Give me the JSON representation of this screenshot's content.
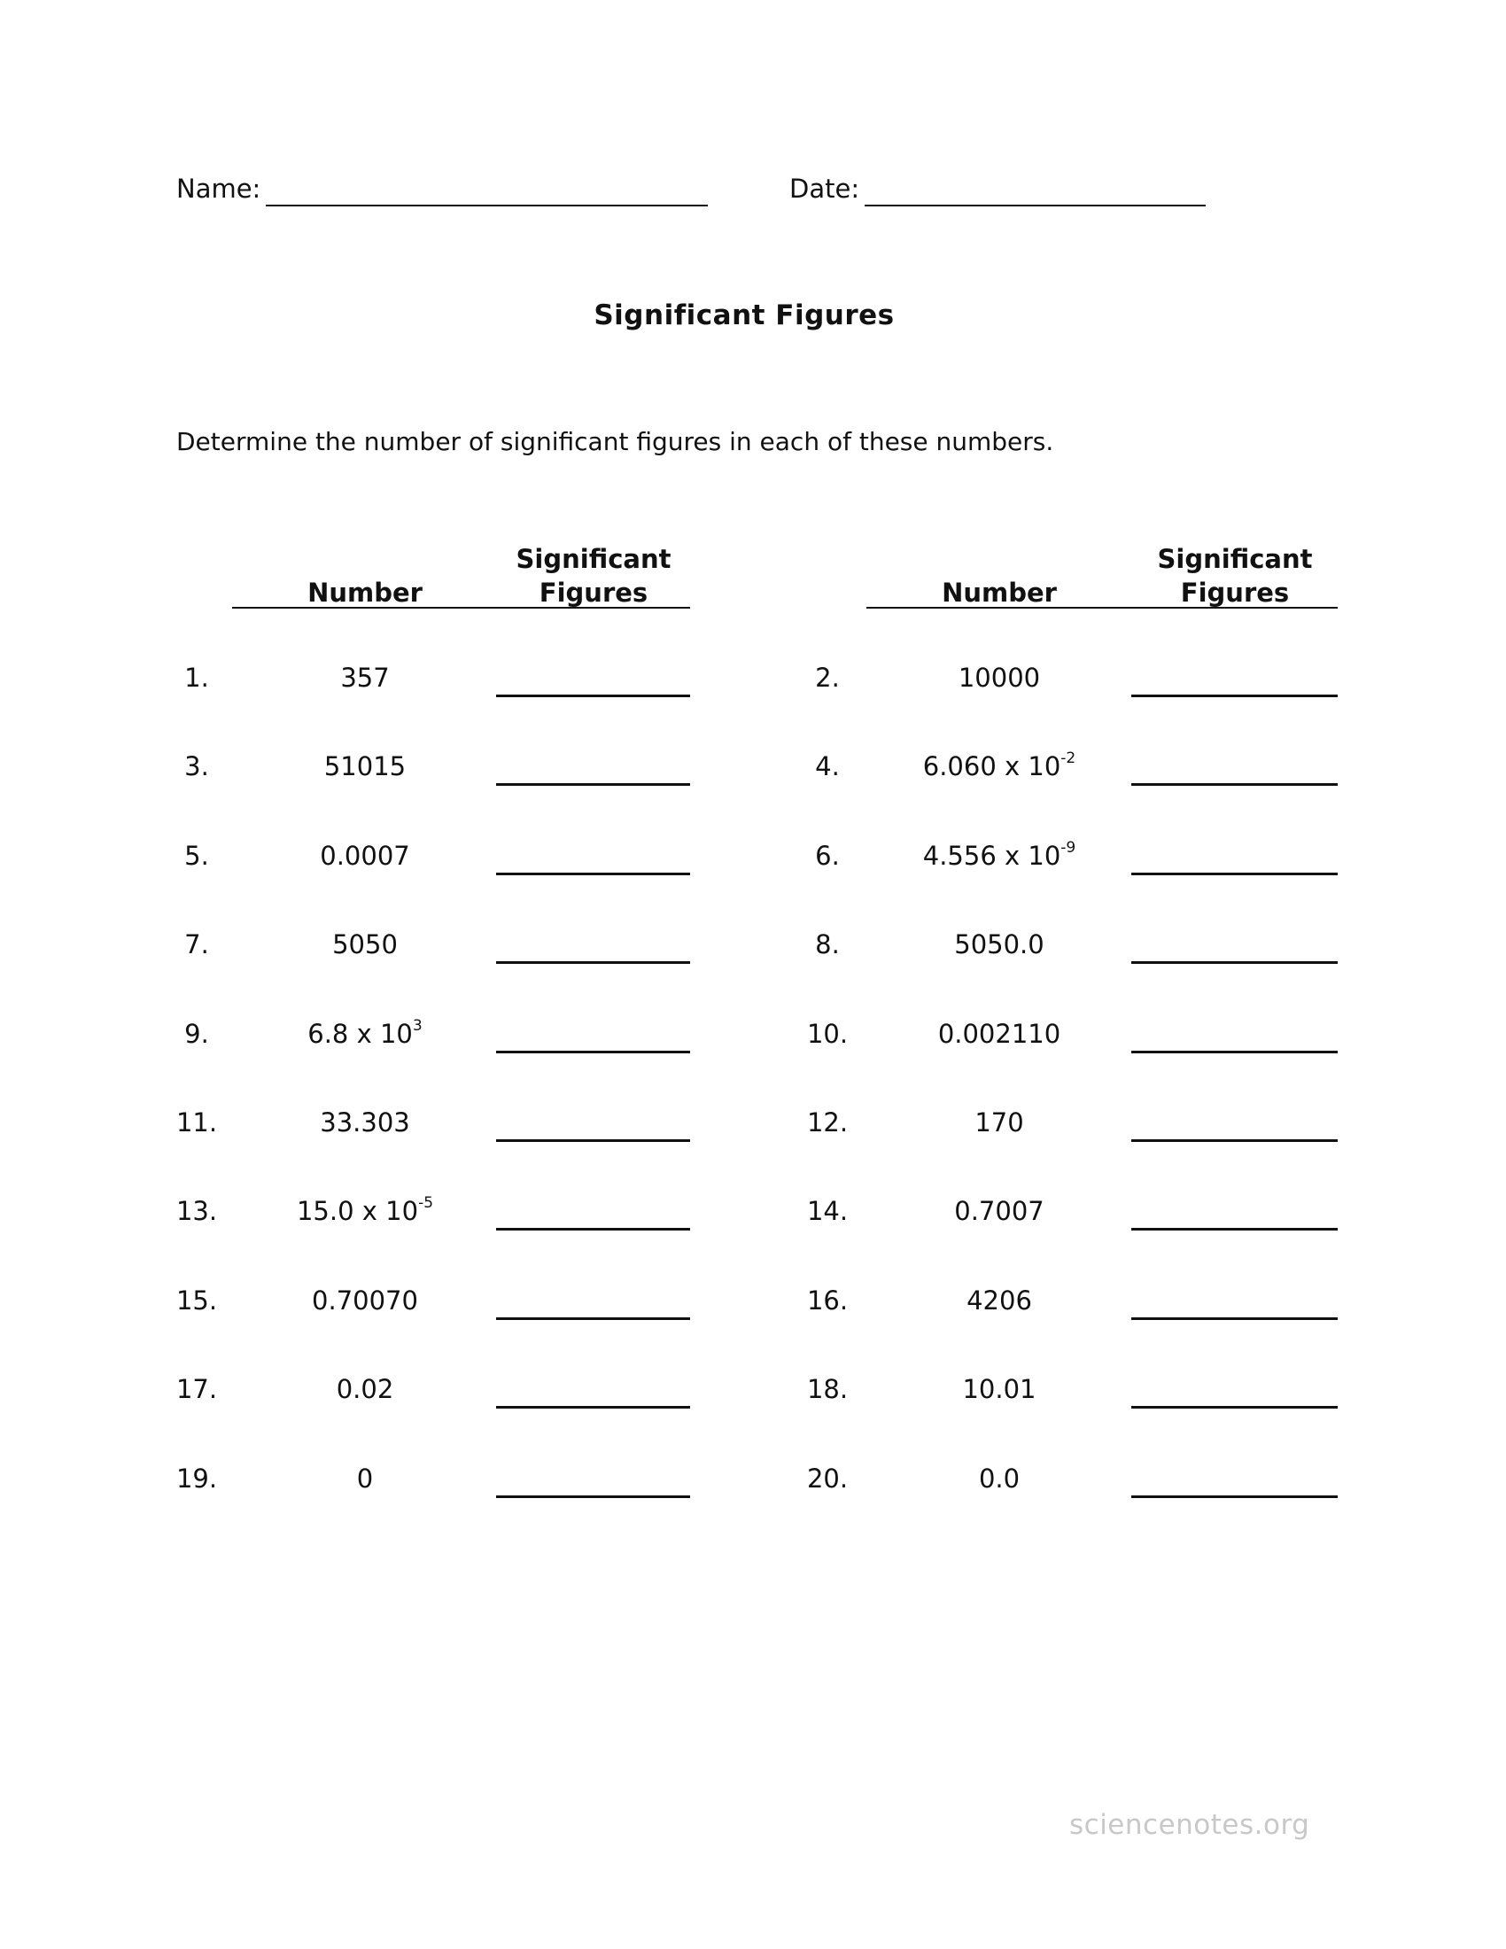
{
  "header": {
    "name_label": "Name:",
    "date_label": "Date:"
  },
  "title": "Significant  Figures",
  "instructions": "Determine the number of significant figures in each of these numbers.",
  "columns": {
    "number": "Number",
    "sigfigs_line1": "Significant",
    "sigfigs_line2": "Figures"
  },
  "problems": [
    {
      "label": "1.",
      "base": "357",
      "exp": ""
    },
    {
      "label": "2.",
      "base": "10000",
      "exp": ""
    },
    {
      "label": "3.",
      "base": "51015",
      "exp": ""
    },
    {
      "label": "4.",
      "base": "6.060 x 10",
      "exp": "-2"
    },
    {
      "label": "5.",
      "base": "0.0007",
      "exp": ""
    },
    {
      "label": "6.",
      "base": "4.556 x 10",
      "exp": "-9"
    },
    {
      "label": "7.",
      "base": "5050",
      "exp": ""
    },
    {
      "label": "8.",
      "base": "5050.0",
      "exp": ""
    },
    {
      "label": "9.",
      "base": "6.8 x 10",
      "exp": "3"
    },
    {
      "label": "10.",
      "base": "0.002110",
      "exp": ""
    },
    {
      "label": "11.",
      "base": "33.303",
      "exp": ""
    },
    {
      "label": "12.",
      "base": "170",
      "exp": ""
    },
    {
      "label": "13.",
      "base": "15.0 x 10",
      "exp": "-5"
    },
    {
      "label": "14.",
      "base": "0.7007",
      "exp": ""
    },
    {
      "label": "15.",
      "base": "0.70070",
      "exp": ""
    },
    {
      "label": "16.",
      "base": "4206",
      "exp": ""
    },
    {
      "label": "17.",
      "base": "0.02",
      "exp": ""
    },
    {
      "label": "18.",
      "base": "10.01",
      "exp": ""
    },
    {
      "label": "19.",
      "base": "0",
      "exp": ""
    },
    {
      "label": "20.",
      "base": "0.0",
      "exp": ""
    }
  ],
  "watermark": "sciencenotes.org",
  "colors": {
    "text": "#111111",
    "watermark": "#c8c8c8"
  }
}
